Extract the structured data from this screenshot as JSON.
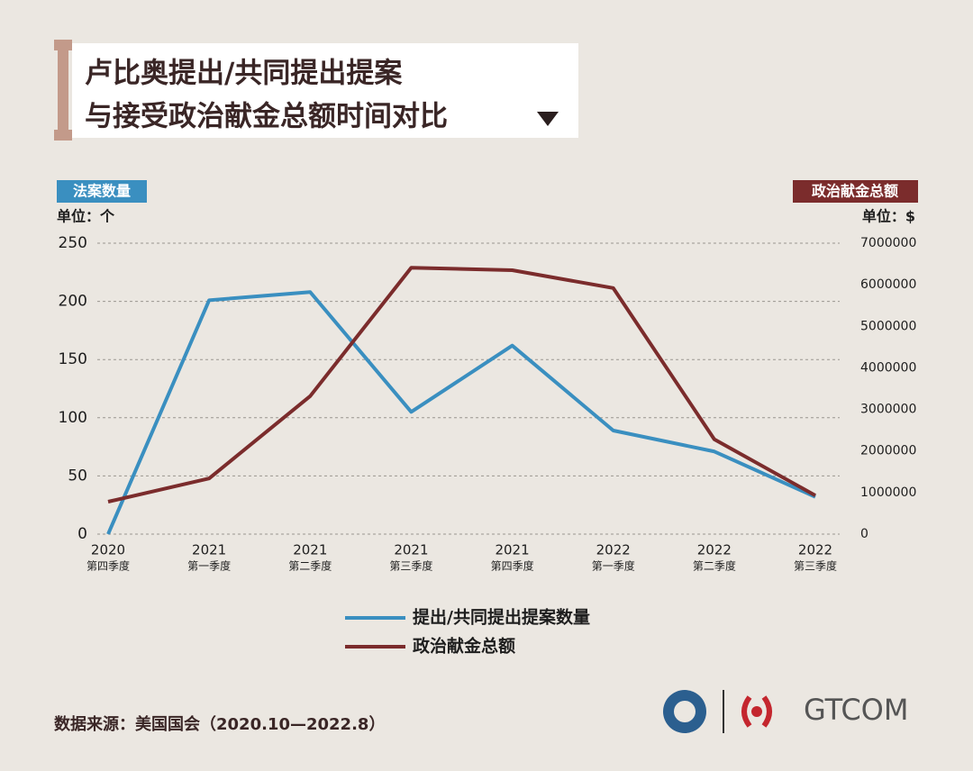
{
  "chart_data": {
    "type": "line",
    "title": [
      "卢比奥提出/共同提出提案",
      "与接受政治献金总额时间对比"
    ],
    "y_axis_label": "法案数量",
    "y_unit": "单位：个",
    "y2_axis_label": "政治献金总额",
    "y2_unit": "单位：$",
    "categories": [
      [
        "2020",
        "第四季度"
      ],
      [
        "2021",
        "第一季度"
      ],
      [
        "2021",
        "第二季度"
      ],
      [
        "2021",
        "第三季度"
      ],
      [
        "2021",
        "第四季度"
      ],
      [
        "2022",
        "第一季度"
      ],
      [
        "2022",
        "第二季度"
      ],
      [
        "2022",
        "第三季度"
      ]
    ],
    "series": [
      {
        "name": "提出/共同提出提案数量",
        "color": "#3a8fc0",
        "values": [
          0,
          201,
          208,
          105,
          162,
          89,
          71,
          32
        ]
      },
      {
        "name": "政治献金总额",
        "color": "#7b2c2c",
        "axis": "y2",
        "values": [
          780000,
          1340000,
          3320000,
          6410000,
          6350000,
          5920000,
          2280000,
          930000
        ]
      }
    ],
    "ylim": [
      0,
      250
    ],
    "yticks": [
      0,
      50,
      100,
      150,
      200,
      250
    ],
    "y2lim": [
      0,
      7000000
    ],
    "y2ticks": [
      0,
      1000000,
      2000000,
      3000000,
      4000000,
      5000000,
      6000000,
      7000000
    ],
    "grid": true,
    "source": "数据来源：美国国会（2020.10—2022.8）",
    "brand": "GTCOM"
  }
}
